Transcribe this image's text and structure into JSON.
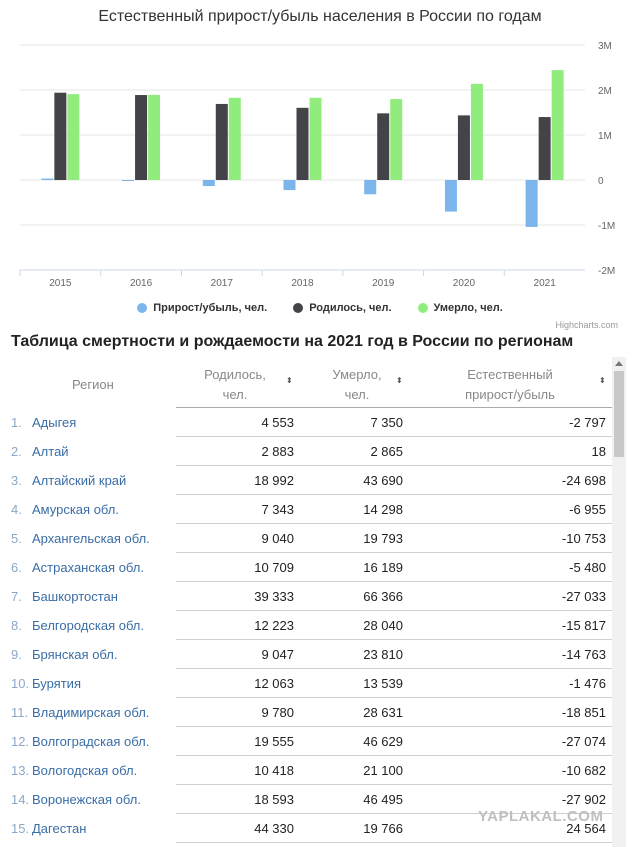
{
  "chart_data": {
    "type": "bar",
    "title": "Естественный прирост/убыль населения в России по годам",
    "categories": [
      "2015",
      "2016",
      "2017",
      "2018",
      "2019",
      "2020",
      "2021"
    ],
    "series": [
      {
        "name": "Прирост/убыль, чел.",
        "color": "#7cb5ec",
        "values": [
          32000,
          -2000,
          -135000,
          -224000,
          -317000,
          -702000,
          -1043000
        ]
      },
      {
        "name": "Родилось, чел.",
        "color": "#434348",
        "values": [
          1940000,
          1888000,
          1690000,
          1604000,
          1481000,
          1436000,
          1399000
        ]
      },
      {
        "name": "Умерло, чел.",
        "color": "#90ed7d",
        "values": [
          1908000,
          1891000,
          1826000,
          1828000,
          1798000,
          2138000,
          2442000
        ]
      }
    ],
    "y_ticks": [
      "-2M",
      "-1M",
      "0",
      "1M",
      "2M",
      "3M"
    ],
    "ylim": [
      -2000000,
      3000000
    ],
    "grid": true,
    "legend_position": "bottom",
    "credits": "Highcharts.com"
  },
  "table": {
    "title": "Таблица смертности и рождаемости на 2021 год в России по регионам",
    "headers": {
      "region": "Регион",
      "born_line1": "Родилось,",
      "born_line2": "чел.",
      "died_line1": "Умерло,",
      "died_line2": "чел.",
      "natural_line1": "Естественный",
      "natural_line2": "прирост/убыль"
    },
    "sort_icon": "⬍",
    "rows": [
      {
        "num": "1.",
        "region": "Адыгея",
        "born": "4 553",
        "died": "7 350",
        "natural": "-2 797"
      },
      {
        "num": "2.",
        "region": "Алтай",
        "born": "2 883",
        "died": "2 865",
        "natural": "18"
      },
      {
        "num": "3.",
        "region": "Алтайский край",
        "born": "18 992",
        "died": "43 690",
        "natural": "-24 698"
      },
      {
        "num": "4.",
        "region": "Амурская обл.",
        "born": "7 343",
        "died": "14 298",
        "natural": "-6 955"
      },
      {
        "num": "5.",
        "region": "Архангельская обл.",
        "born": "9 040",
        "died": "19 793",
        "natural": "-10 753"
      },
      {
        "num": "6.",
        "region": "Астраханская обл.",
        "born": "10 709",
        "died": "16 189",
        "natural": "-5 480"
      },
      {
        "num": "7.",
        "region": "Башкортостан",
        "born": "39 333",
        "died": "66 366",
        "natural": "-27 033"
      },
      {
        "num": "8.",
        "region": "Белгородская обл.",
        "born": "12 223",
        "died": "28 040",
        "natural": "-15 817"
      },
      {
        "num": "9.",
        "region": "Брянская обл.",
        "born": "9 047",
        "died": "23 810",
        "natural": "-14 763"
      },
      {
        "num": "10.",
        "region": "Бурятия",
        "born": "12 063",
        "died": "13 539",
        "natural": "-1 476"
      },
      {
        "num": "11.",
        "region": "Владимирская обл.",
        "born": "9 780",
        "died": "28 631",
        "natural": "-18 851"
      },
      {
        "num": "12.",
        "region": "Волгоградская обл.",
        "born": "19 555",
        "died": "46 629",
        "natural": "-27 074"
      },
      {
        "num": "13.",
        "region": "Вологодская обл.",
        "born": "10 418",
        "died": "21 100",
        "natural": "-10 682"
      },
      {
        "num": "14.",
        "region": "Воронежская обл.",
        "born": "18 593",
        "died": "46 495",
        "natural": "-27 902"
      },
      {
        "num": "15.",
        "region": "Дагестан",
        "born": "44 330",
        "died": "19 766",
        "natural": "24 564"
      }
    ]
  },
  "watermark": "YAPLAKAL.COM"
}
